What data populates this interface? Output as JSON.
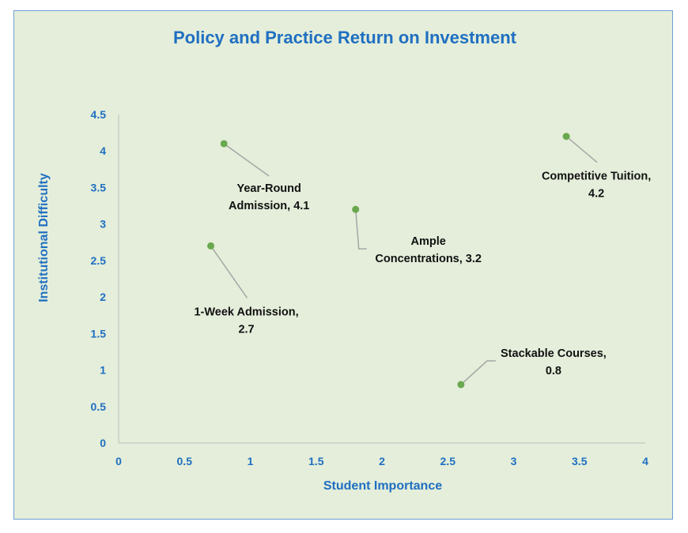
{
  "chart_data": {
    "type": "scatter",
    "title": "Policy and Practice Return on Investment",
    "xlabel": "Student Importance",
    "ylabel": "Institutional Difficulty",
    "xlim": [
      0,
      4
    ],
    "ylim": [
      0,
      4.5
    ],
    "x_ticks": [
      "0",
      "0.5",
      "1",
      "1.5",
      "2",
      "2.5",
      "3",
      "3.5",
      "4"
    ],
    "y_ticks": [
      "0",
      "0.5",
      "1",
      "1.5",
      "2",
      "2.5",
      "3",
      "3.5",
      "4",
      "4.5"
    ],
    "grid": false,
    "marker_color": "#6aa84f",
    "points": [
      {
        "x": 0.8,
        "y": 4.1,
        "label_lines": [
          "Year-Round",
          "Admission, 4.1"
        ]
      },
      {
        "x": 1.8,
        "y": 3.2,
        "label_lines": [
          "Ample",
          "Concentrations, 3.2"
        ]
      },
      {
        "x": 3.4,
        "y": 4.2,
        "label_lines": [
          "Competitive Tuition,",
          "4.2"
        ]
      },
      {
        "x": 0.7,
        "y": 2.7,
        "label_lines": [
          "1-Week Admission,",
          "2.7"
        ]
      },
      {
        "x": 2.6,
        "y": 0.8,
        "label_lines": [
          "Stackable Courses,",
          "0.8"
        ]
      }
    ]
  },
  "colors": {
    "background": "#e4eeda",
    "border": "#6f9fd8",
    "accent_text": "#1f6fc1",
    "axis_line": "#bfbfbf",
    "leader_line": "#a6a6a6"
  }
}
